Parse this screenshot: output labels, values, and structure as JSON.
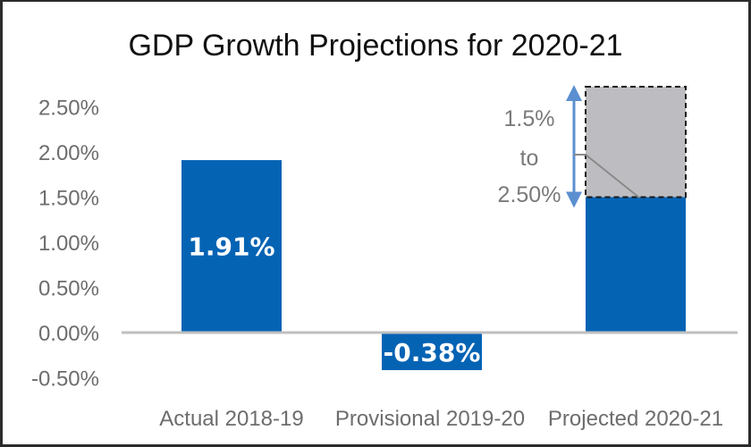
{
  "chart_data": {
    "type": "bar",
    "title": "GDP Growth Projections for 2020-21",
    "xlabel": "",
    "ylabel": "",
    "ylim": [
      -0.5,
      2.5
    ],
    "yticks": [
      2.5,
      2.0,
      1.5,
      1.0,
      0.5,
      0.0,
      -0.5
    ],
    "ytick_labels": [
      "2.50%",
      "2.00%",
      "1.50%",
      "1.00%",
      "0.50%",
      "0.00%",
      "-0.50%"
    ],
    "grid": false,
    "categories": [
      "Actual 2018-19",
      "Provisional 2019-20",
      "Projected 2020-21"
    ],
    "values": [
      1.91,
      -0.38,
      1.5
    ],
    "data_labels": [
      "1.91%",
      "-0.38%",
      ""
    ],
    "projection_range": {
      "category": "Projected 2020-21",
      "low": 1.5,
      "high": 2.5,
      "label_lines": [
        "1.5%",
        "to",
        "2.50%"
      ]
    },
    "colors": {
      "bar": "#0563b4",
      "range_fill": "#bdbdc1",
      "range_border": "#1a1a1a",
      "arrow": "#5b8fd0",
      "axis": "#bfbfbf"
    }
  }
}
